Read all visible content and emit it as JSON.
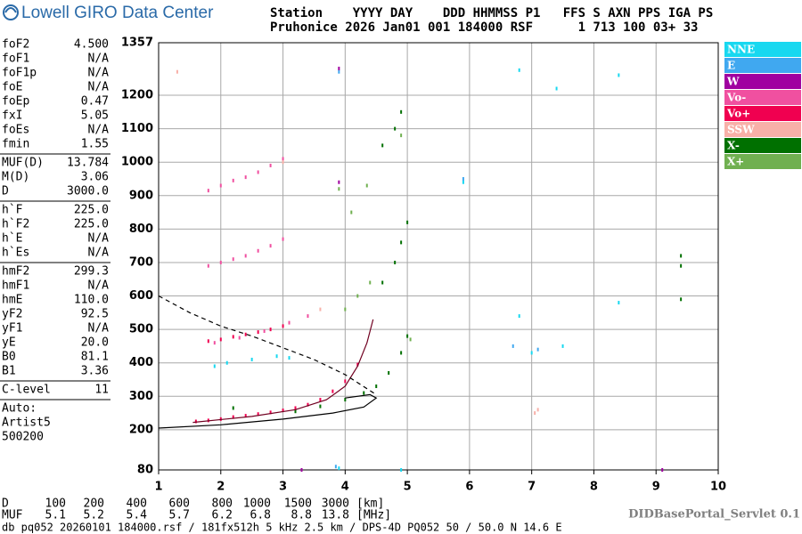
{
  "header": {
    "logo": "Lowell GIRO Data Center",
    "line1": "Station    YYYY DAY    DDD HHMMSS P1   FFS S AXN PPS IGA PS",
    "line2": "Pruhonice 2026 Jan01 001 184000 RSF      1 713 100 03+ 33"
  },
  "param_groups": [
    [
      {
        "label": "foF2",
        "value": "4.500"
      },
      {
        "label": "foF1",
        "value": "N/A"
      },
      {
        "label": "foF1p",
        "value": "N/A"
      },
      {
        "label": "foE",
        "value": "N/A"
      },
      {
        "label": "foEp",
        "value": "0.47"
      },
      {
        "label": "fxI",
        "value": "5.05"
      },
      {
        "label": "foEs",
        "value": "N/A"
      },
      {
        "label": "fmin",
        "value": "1.55"
      }
    ],
    [
      {
        "label": "MUF(D)",
        "value": "13.784"
      },
      {
        "label": "M(D)",
        "value": "3.06"
      },
      {
        "label": "D",
        "value": "3000.0"
      }
    ],
    [
      {
        "label": "h`F",
        "value": "225.0"
      },
      {
        "label": "h`F2",
        "value": "225.0"
      },
      {
        "label": "h`E",
        "value": "N/A"
      },
      {
        "label": "h`Es",
        "value": "N/A"
      }
    ],
    [
      {
        "label": "hmF2",
        "value": "299.3"
      },
      {
        "label": "hmF1",
        "value": "N/A"
      },
      {
        "label": "hmE",
        "value": "110.0"
      },
      {
        "label": "yF2",
        "value": "92.5"
      },
      {
        "label": "yF1",
        "value": "N/A"
      },
      {
        "label": "yE",
        "value": "20.0"
      },
      {
        "label": "B0",
        "value": "81.1"
      },
      {
        "label": "B1",
        "value": "3.36"
      }
    ],
    [
      {
        "label": "C-level",
        "value": "11"
      }
    ]
  ],
  "auto": [
    "Auto:",
    "Artist5",
    "500200"
  ],
  "muf_table": {
    "d_label": "D",
    "d_unit": "[km]",
    "d_values": [
      100,
      200,
      400,
      600,
      800,
      1000,
      1500,
      3000
    ],
    "muf_label": "MUF",
    "muf_unit": "[MHz]",
    "muf_values": [
      5.1,
      5.2,
      5.4,
      5.7,
      6.2,
      6.8,
      8.8,
      13.8
    ]
  },
  "footer": "db pq052 20260101 184000.rsf / 181fx512h 5 kHz 2.5 km / DPS-4D PQ052 50 / 50.0 N 14.6 E",
  "servlet": "DIDBasePortal_Servlet 0.1",
  "chart_data": {
    "type": "scatter",
    "xlim": [
      1,
      10
    ],
    "ylim": [
      80,
      1357
    ],
    "xticks": [
      1,
      2,
      3,
      4,
      5,
      6,
      7,
      8,
      9,
      10
    ],
    "yticks": [
      80,
      200,
      300,
      400,
      500,
      600,
      700,
      800,
      900,
      1000,
      1100,
      1200,
      1357
    ],
    "grid": true,
    "legend": "right",
    "series": [
      {
        "name": "NNE",
        "color": "#18d8f0",
        "x": [
          1.9,
          2.1,
          2.5,
          2.9,
          3.1,
          5.9,
          6.8,
          7.4,
          8.4,
          6.8,
          7.0,
          8.4,
          4.9,
          3.9,
          7.5
        ],
        "y": [
          390,
          400,
          410,
          420,
          415,
          940,
          1275,
          1220,
          1260,
          540,
          430,
          580,
          80,
          85,
          450
        ]
      },
      {
        "name": "E",
        "color": "#40a8f0",
        "x": [
          3.9,
          6.7,
          7.1,
          5.9,
          3.85
        ],
        "y": [
          1270,
          450,
          440,
          950,
          90
        ]
      },
      {
        "name": "W",
        "color": "#a000a0",
        "x": [
          3.9,
          3.3,
          9.1,
          3.9
        ],
        "y": [
          1280,
          80,
          80,
          940
        ]
      },
      {
        "name": "Vo-",
        "color": "#f050a0",
        "x": [
          1.8,
          2.0,
          2.2,
          2.4,
          2.6,
          2.8,
          3.0,
          1.8,
          2.0,
          2.2,
          2.4,
          2.6,
          2.8,
          3.0,
          1.9,
          2.3,
          2.7,
          3.1,
          3.4
        ],
        "y": [
          690,
          700,
          710,
          720,
          735,
          750,
          770,
          915,
          930,
          945,
          955,
          970,
          990,
          1010,
          460,
          475,
          495,
          520,
          540
        ]
      },
      {
        "name": "Vo+",
        "color": "#f00050",
        "x": [
          1.6,
          1.8,
          2.0,
          2.2,
          2.4,
          2.6,
          2.8,
          3.0,
          3.2,
          3.4,
          3.6,
          3.8,
          4.0,
          4.2,
          1.8,
          2.0,
          2.2,
          2.4,
          2.6,
          2.8,
          3.0
        ],
        "y": [
          225,
          228,
          232,
          238,
          242,
          247,
          252,
          258,
          265,
          275,
          290,
          315,
          345,
          395,
          465,
          470,
          478,
          485,
          492,
          500,
          510
        ]
      },
      {
        "name": "SSW",
        "color": "#f8b0a8",
        "x": [
          1.3,
          7.1,
          3.0,
          7.05,
          3.6
        ],
        "y": [
          1270,
          260,
          1000,
          250,
          560
        ]
      },
      {
        "name": "X-",
        "color": "#007000",
        "x": [
          3.2,
          3.6,
          4.0,
          4.3,
          4.5,
          4.7,
          4.9,
          5.0,
          4.6,
          4.8,
          4.9,
          5.0,
          4.6,
          4.8,
          4.9,
          9.4,
          9.4,
          9.4,
          2.2
        ],
        "y": [
          255,
          270,
          290,
          310,
          330,
          370,
          430,
          480,
          640,
          700,
          760,
          820,
          1050,
          1100,
          1150,
          720,
          690,
          590,
          265
        ]
      },
      {
        "name": "X+",
        "color": "#70b050",
        "x": [
          4.0,
          4.2,
          4.4,
          3.9,
          4.1,
          4.9,
          5.05,
          4.35
        ],
        "y": [
          560,
          600,
          640,
          920,
          850,
          1080,
          470,
          930
        ]
      }
    ],
    "curves": [
      {
        "color": "#000000",
        "dash": false,
        "x": [
          1.0,
          2.0,
          3.0,
          3.8,
          4.3,
          4.5,
          4.4,
          4.0
        ],
        "y": [
          205,
          215,
          232,
          250,
          268,
          295,
          305,
          295
        ]
      },
      {
        "color": "#700020",
        "dash": false,
        "x": [
          1.55,
          2.5,
          3.2,
          3.7,
          4.0,
          4.2,
          4.35,
          4.45
        ],
        "y": [
          222,
          240,
          260,
          290,
          330,
          390,
          460,
          530
        ]
      },
      {
        "color": "#000000",
        "dash": true,
        "x": [
          1.0,
          1.5,
          2.0,
          2.5,
          3.0,
          3.5,
          4.0,
          4.5
        ],
        "y": [
          600,
          550,
          510,
          480,
          445,
          410,
          365,
          305
        ]
      }
    ]
  }
}
